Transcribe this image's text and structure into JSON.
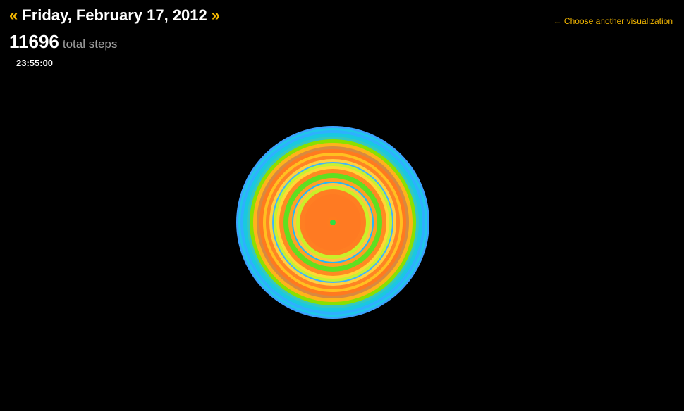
{
  "header": {
    "prev_label": "«",
    "next_label": "»",
    "date": "Friday, February 17, 2012",
    "steps_count": "11696",
    "steps_unit": "total steps",
    "time": "23:55:00"
  },
  "nav": {
    "back_link": "← Choose another visualization"
  },
  "colors": {
    "background": "#000000",
    "accent": "#f5b800",
    "muted_text": "#a0a0a0"
  },
  "rings": [
    "#3ba3ff",
    "#1fc8e8",
    "#2fb0ff",
    "#19c9e0",
    "#35c8c0",
    "#8ae000",
    "#ffb31a",
    "#d88a3f",
    "#ff7a1f",
    "#ffc020",
    "#ff8424",
    "#ffd040",
    "#3fb4ff",
    "#c8f030",
    "#ffd836",
    "#ff8a22",
    "#5fe020",
    "#ff9f24",
    "#1fb8ff",
    "#ffc640",
    "#c9f028",
    "#ff7e22",
    "#ff7a22",
    "#ff7c20",
    "#2ee040"
  ]
}
